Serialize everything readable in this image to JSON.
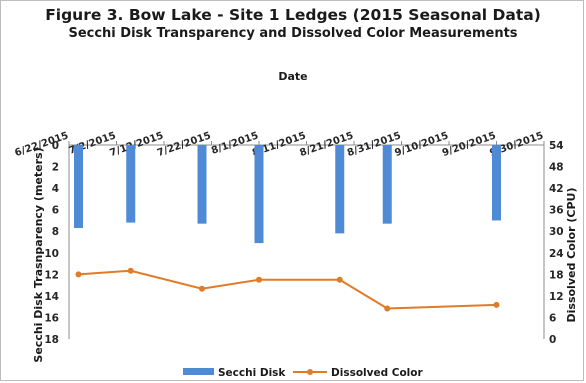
{
  "chart_data": {
    "type": "bar+line",
    "title": "Figure 3. Bow Lake - Site 1 Ledges (2015 Seasonal Data)",
    "subtitle": "Secchi Disk Transparency and Dissolved Color Measurements",
    "xlabel": "Date",
    "ylabel": "Secchi Disk Trasnparency (meters)",
    "y2label": "Dissolved Color (CPU)",
    "x_ticks": [
      "6/22/2015",
      "7/2/2015",
      "7/12/2015",
      "7/22/2015",
      "8/1/2015",
      "8/11/2015",
      "8/21/2015",
      "8/31/2015",
      "9/10/2015",
      "9/20/2015",
      "9/30/2015"
    ],
    "xlim": [
      "6/22/2015",
      "9/30/2015"
    ],
    "ylim": [
      0,
      18
    ],
    "y_inverted": true,
    "y_ticks": [
      0,
      2,
      4,
      6,
      8,
      10,
      12,
      14,
      16,
      18
    ],
    "y2lim": [
      0,
      54
    ],
    "y2_ticks": [
      0,
      6,
      12,
      18,
      24,
      30,
      36,
      42,
      48,
      54
    ],
    "x_axis_position": "top",
    "grid": false,
    "legend_position": "bottom",
    "series": [
      {
        "name": "Secchi Disk",
        "kind": "bar",
        "axis": "left",
        "color": "#4f8ad6",
        "points": [
          {
            "x": "6/24/2015",
            "y": 7.7
          },
          {
            "x": "7/5/2015",
            "y": 7.2
          },
          {
            "x": "7/20/2015",
            "y": 7.3
          },
          {
            "x": "8/1/2015",
            "y": 9.1
          },
          {
            "x": "8/18/2015",
            "y": 8.2
          },
          {
            "x": "8/28/2015",
            "y": 7.3
          },
          {
            "x": "9/20/2015",
            "y": 7.0
          }
        ]
      },
      {
        "name": "Dissolved Color",
        "kind": "line",
        "axis": "right",
        "color": "#e07b28",
        "points": [
          {
            "x": "6/24/2015",
            "y": 18
          },
          {
            "x": "7/5/2015",
            "y": 19
          },
          {
            "x": "7/20/2015",
            "y": 14
          },
          {
            "x": "8/1/2015",
            "y": 16.5
          },
          {
            "x": "8/18/2015",
            "y": 16.5
          },
          {
            "x": "8/28/2015",
            "y": 8.5
          },
          {
            "x": "9/20/2015",
            "y": 9.5
          }
        ]
      }
    ]
  }
}
